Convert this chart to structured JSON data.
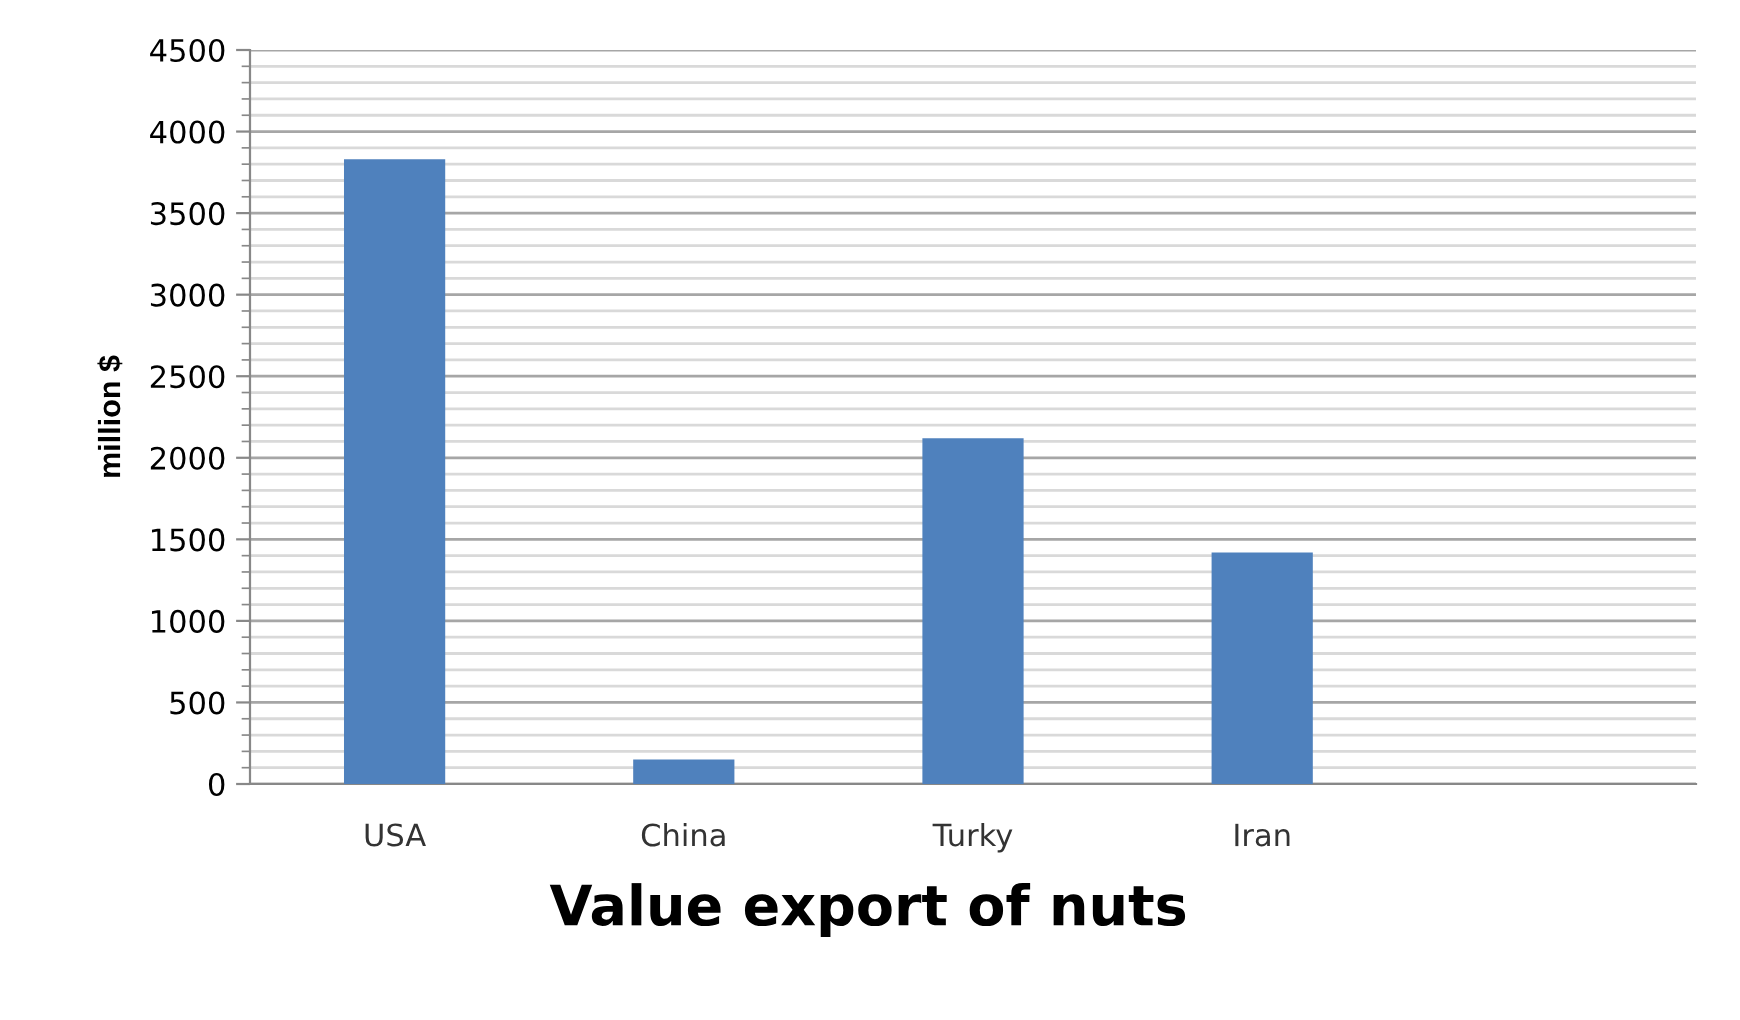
{
  "chart_data": {
    "type": "bar",
    "title": "Value export of nuts",
    "ylabel": "million $",
    "categories": [
      "USA",
      "China",
      "Turky",
      "Iran",
      null
    ],
    "values": [
      3830,
      150,
      2120,
      1420,
      null
    ],
    "color": "#4f81bd",
    "ylim": [
      0,
      4500
    ],
    "yticks": [
      0,
      500,
      1000,
      1500,
      2000,
      2500,
      3000,
      3500,
      4000,
      4500
    ],
    "grid": "y"
  }
}
